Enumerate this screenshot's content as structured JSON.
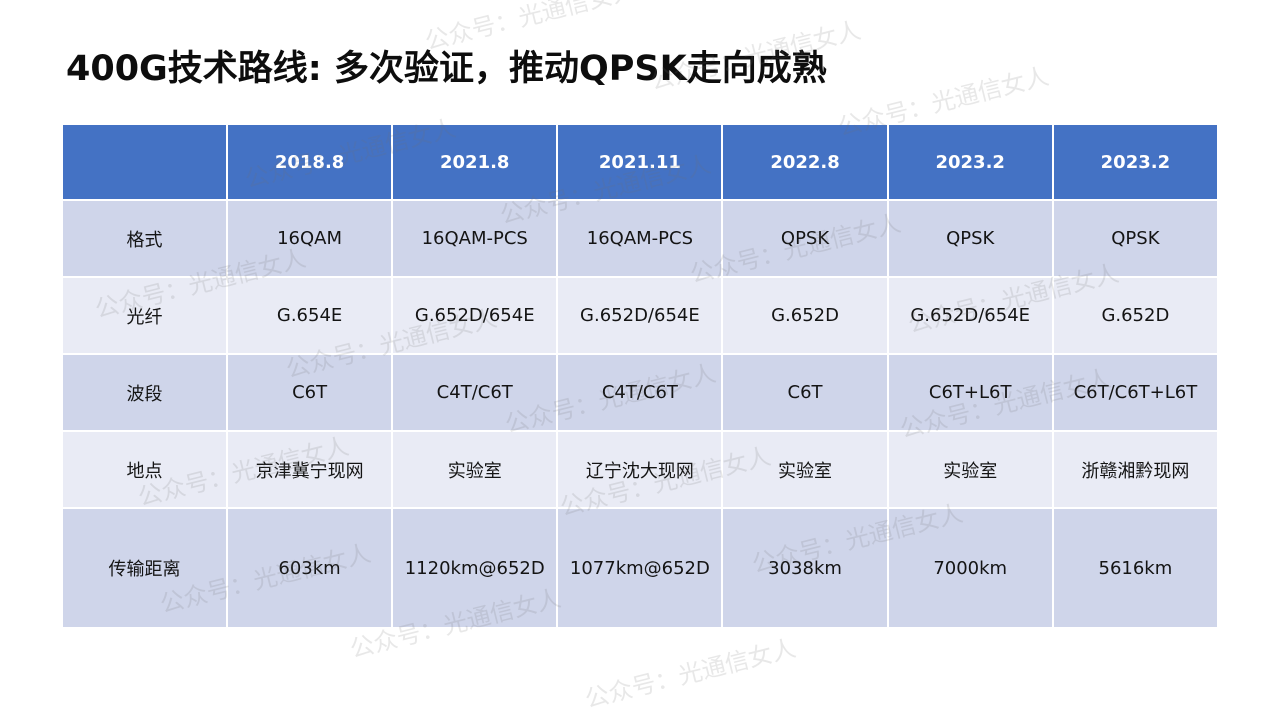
{
  "title": "400G技术路线: 多次验证，推动QPSK走向成熟",
  "table": {
    "headers": [
      "",
      "2018.8",
      "2021.8",
      "2021.11",
      "2022.8",
      "2023.2",
      "2023.2"
    ],
    "rows": [
      {
        "label": "格式",
        "cells": [
          "16QAM",
          "16QAM-PCS",
          "16QAM-PCS",
          "QPSK",
          "QPSK",
          "QPSK"
        ]
      },
      {
        "label": "光纤",
        "cells": [
          "G.654E",
          "G.652D/654E",
          "G.652D/654E",
          "G.652D",
          "G.652D/654E",
          "G.652D"
        ]
      },
      {
        "label": "波段",
        "cells": [
          "C6T",
          "C4T/C6T",
          "C4T/C6T",
          "C6T",
          "C6T+L6T",
          "C6T/C6T+L6T"
        ]
      },
      {
        "label": "地点",
        "cells": [
          "京津冀宁现网",
          "实验室",
          "辽宁沈大现网",
          "实验室",
          "实验室",
          "浙赣湘黔现网"
        ]
      },
      {
        "label": "传输距离",
        "cells": [
          "603km",
          "1120km@652D",
          "1077km@652D",
          "3038km",
          "7000km",
          "5616km"
        ]
      }
    ]
  },
  "watermark": "公众号：光通信女人"
}
